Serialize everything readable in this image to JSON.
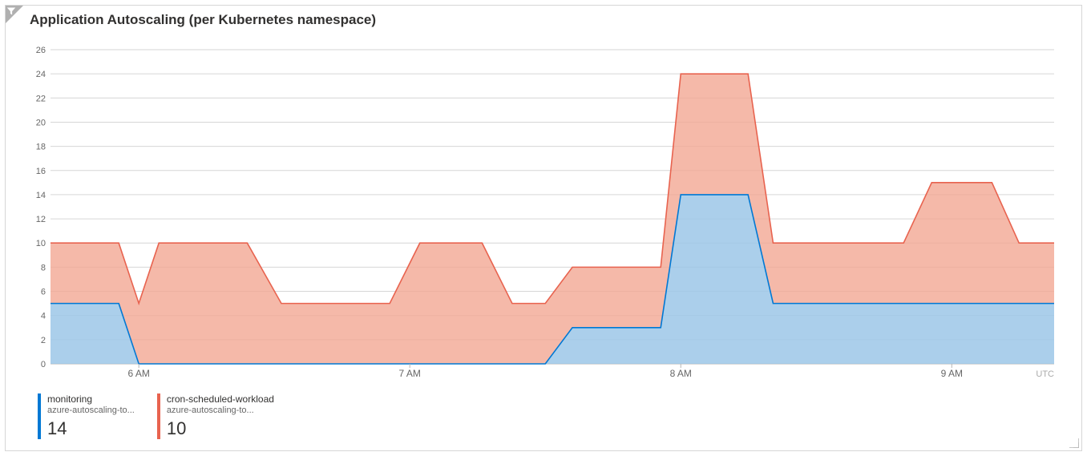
{
  "title": "Application Autoscaling (per Kubernetes namespace)",
  "chart": {
    "type": "area-stacked",
    "y_axis": {
      "min": 0,
      "max": 26,
      "tick_step": 2
    },
    "x_axis": {
      "ticks": [
        {
          "t": 0.088,
          "label": "6 AM"
        },
        {
          "t": 0.358,
          "label": "7 AM"
        },
        {
          "t": 0.628,
          "label": "8 AM"
        },
        {
          "t": 0.898,
          "label": "9 AM"
        }
      ],
      "timezone_label": "UTC"
    },
    "colors": {
      "grid": "#d6d6d6",
      "baseline": "#b5b5b5",
      "background": "#ffffff"
    },
    "series": [
      {
        "id": "monitoring",
        "name": "monitoring",
        "subtitle": "azure-autoscaling-to...",
        "current_value": "14",
        "stroke": "#0078d4",
        "fill": "#9cc7e8",
        "fill_opacity": 0.85,
        "points": [
          {
            "t": 0.0,
            "v": 5
          },
          {
            "t": 0.068,
            "v": 5
          },
          {
            "t": 0.088,
            "v": 0
          },
          {
            "t": 0.493,
            "v": 0
          },
          {
            "t": 0.52,
            "v": 3
          },
          {
            "t": 0.608,
            "v": 3
          },
          {
            "t": 0.628,
            "v": 14
          },
          {
            "t": 0.695,
            "v": 14
          },
          {
            "t": 0.72,
            "v": 5
          },
          {
            "t": 1.0,
            "v": 5
          }
        ]
      },
      {
        "id": "cron-scheduled-workload",
        "name": "cron-scheduled-workload",
        "subtitle": "azure-autoscaling-to...",
        "current_value": "10",
        "stroke": "#e8634f",
        "fill": "#f2a794",
        "fill_opacity": 0.8,
        "points": [
          {
            "t": 0.0,
            "v": 5
          },
          {
            "t": 0.068,
            "v": 5
          },
          {
            "t": 0.088,
            "v": 5
          },
          {
            "t": 0.108,
            "v": 10
          },
          {
            "t": 0.196,
            "v": 10
          },
          {
            "t": 0.23,
            "v": 5
          },
          {
            "t": 0.338,
            "v": 5
          },
          {
            "t": 0.368,
            "v": 10
          },
          {
            "t": 0.43,
            "v": 10
          },
          {
            "t": 0.46,
            "v": 5
          },
          {
            "t": 0.493,
            "v": 5
          },
          {
            "t": 0.52,
            "v": 5
          },
          {
            "t": 0.53,
            "v": 5
          },
          {
            "t": 0.608,
            "v": 5
          },
          {
            "t": 0.628,
            "v": 10
          },
          {
            "t": 0.695,
            "v": 10
          },
          {
            "t": 0.72,
            "v": 5
          },
          {
            "t": 0.85,
            "v": 5
          },
          {
            "t": 0.878,
            "v": 10
          },
          {
            "t": 0.938,
            "v": 10
          },
          {
            "t": 0.965,
            "v": 5
          },
          {
            "t": 1.0,
            "v": 5
          }
        ]
      }
    ]
  }
}
